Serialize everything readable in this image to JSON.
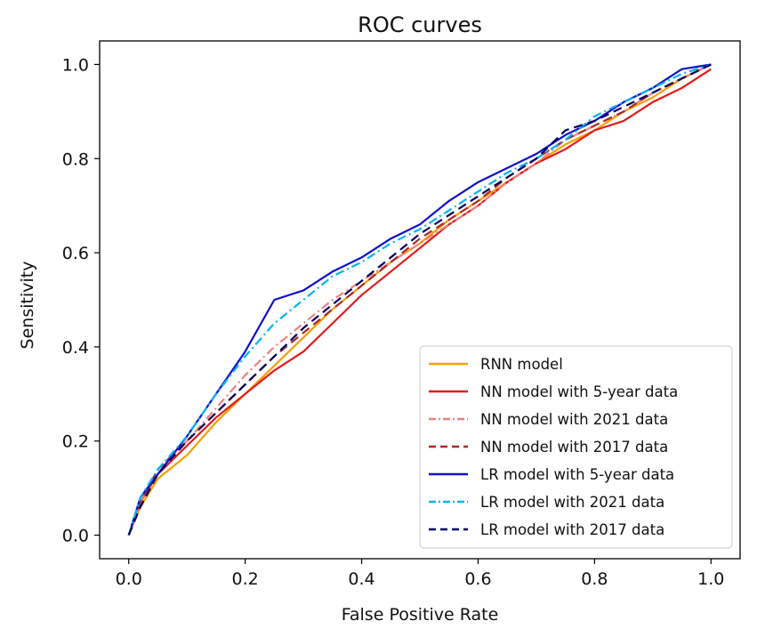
{
  "chart_data": {
    "type": "line",
    "title": "ROC curves",
    "xlabel": "False Positive Rate",
    "ylabel": "Sensitivity",
    "xlim": [
      -0.05,
      1.05
    ],
    "ylim": [
      -0.05,
      1.05
    ],
    "xticks": [
      0.0,
      0.2,
      0.4,
      0.6,
      0.8,
      1.0
    ],
    "yticks": [
      0.0,
      0.2,
      0.4,
      0.6,
      0.8,
      1.0
    ],
    "xtick_labels": [
      "0.0",
      "0.2",
      "0.4",
      "0.6",
      "0.8",
      "1.0"
    ],
    "ytick_labels": [
      "0.0",
      "0.2",
      "0.4",
      "0.6",
      "0.8",
      "1.0"
    ],
    "grid": false,
    "legend_position": "bottom-right",
    "series": [
      {
        "name": "RNN model",
        "color": "#f5a000",
        "style": "solid",
        "x": [
          0,
          0.02,
          0.05,
          0.1,
          0.15,
          0.2,
          0.25,
          0.3,
          0.35,
          0.4,
          0.45,
          0.5,
          0.55,
          0.6,
          0.65,
          0.7,
          0.75,
          0.8,
          0.85,
          0.9,
          0.95,
          1.0
        ],
        "y": [
          0,
          0.06,
          0.12,
          0.17,
          0.24,
          0.3,
          0.36,
          0.42,
          0.48,
          0.53,
          0.58,
          0.62,
          0.67,
          0.71,
          0.75,
          0.79,
          0.83,
          0.86,
          0.9,
          0.93,
          0.97,
          1.0
        ]
      },
      {
        "name": "NN model with 5-year data",
        "color": "#e41a1c",
        "style": "solid",
        "x": [
          0,
          0.02,
          0.05,
          0.1,
          0.15,
          0.2,
          0.25,
          0.3,
          0.35,
          0.4,
          0.45,
          0.5,
          0.55,
          0.6,
          0.65,
          0.7,
          0.75,
          0.8,
          0.85,
          0.9,
          0.95,
          1.0
        ],
        "y": [
          0,
          0.07,
          0.13,
          0.19,
          0.25,
          0.3,
          0.35,
          0.39,
          0.45,
          0.51,
          0.56,
          0.61,
          0.66,
          0.7,
          0.75,
          0.79,
          0.82,
          0.86,
          0.88,
          0.92,
          0.95,
          0.99
        ]
      },
      {
        "name": "NN model with 2021 data",
        "color": "#f08080",
        "style": "dashdot",
        "x": [
          0,
          0.02,
          0.05,
          0.1,
          0.15,
          0.2,
          0.25,
          0.3,
          0.35,
          0.4,
          0.45,
          0.5,
          0.55,
          0.6,
          0.65,
          0.7,
          0.75,
          0.8,
          0.85,
          0.9,
          0.95,
          1.0
        ],
        "y": [
          0,
          0.07,
          0.14,
          0.2,
          0.27,
          0.34,
          0.4,
          0.45,
          0.5,
          0.54,
          0.58,
          0.62,
          0.66,
          0.7,
          0.75,
          0.79,
          0.84,
          0.87,
          0.9,
          0.94,
          0.97,
          1.0
        ]
      },
      {
        "name": "NN model with 2017 data",
        "color": "#a52a2a",
        "style": "dashed",
        "x": [
          0,
          0.02,
          0.05,
          0.1,
          0.15,
          0.2,
          0.25,
          0.3,
          0.35,
          0.4,
          0.45,
          0.5,
          0.55,
          0.6,
          0.65,
          0.7,
          0.75,
          0.8,
          0.85,
          0.9,
          0.95,
          1.0
        ],
        "y": [
          0,
          0.07,
          0.14,
          0.2,
          0.26,
          0.32,
          0.38,
          0.43,
          0.48,
          0.53,
          0.58,
          0.63,
          0.67,
          0.71,
          0.76,
          0.8,
          0.84,
          0.87,
          0.9,
          0.94,
          0.97,
          1.0
        ]
      },
      {
        "name": "LR model with 5-year data",
        "color": "#1010cc",
        "style": "solid",
        "x": [
          0,
          0.02,
          0.05,
          0.1,
          0.15,
          0.2,
          0.25,
          0.3,
          0.35,
          0.4,
          0.45,
          0.5,
          0.55,
          0.6,
          0.65,
          0.7,
          0.75,
          0.8,
          0.85,
          0.9,
          0.95,
          1.0
        ],
        "y": [
          0,
          0.08,
          0.13,
          0.21,
          0.3,
          0.39,
          0.5,
          0.52,
          0.56,
          0.59,
          0.63,
          0.66,
          0.71,
          0.75,
          0.78,
          0.81,
          0.85,
          0.88,
          0.92,
          0.95,
          0.99,
          1.0
        ]
      },
      {
        "name": "LR model with 2021 data",
        "color": "#00b4f0",
        "style": "dashdot",
        "x": [
          0,
          0.02,
          0.05,
          0.1,
          0.15,
          0.2,
          0.25,
          0.3,
          0.35,
          0.4,
          0.45,
          0.5,
          0.55,
          0.6,
          0.65,
          0.7,
          0.75,
          0.8,
          0.85,
          0.9,
          0.95,
          1.0
        ],
        "y": [
          0,
          0.08,
          0.14,
          0.21,
          0.3,
          0.38,
          0.45,
          0.5,
          0.55,
          0.58,
          0.62,
          0.65,
          0.69,
          0.73,
          0.77,
          0.8,
          0.84,
          0.89,
          0.92,
          0.95,
          0.98,
          1.0
        ]
      },
      {
        "name": "LR model with 2017 data",
        "color": "#000060",
        "style": "dashed",
        "x": [
          0,
          0.02,
          0.05,
          0.1,
          0.15,
          0.2,
          0.25,
          0.3,
          0.35,
          0.4,
          0.45,
          0.5,
          0.55,
          0.6,
          0.65,
          0.7,
          0.75,
          0.8,
          0.85,
          0.9,
          0.95,
          1.0
        ],
        "y": [
          0,
          0.06,
          0.13,
          0.2,
          0.26,
          0.32,
          0.38,
          0.44,
          0.49,
          0.54,
          0.59,
          0.64,
          0.68,
          0.72,
          0.76,
          0.8,
          0.86,
          0.88,
          0.91,
          0.94,
          0.97,
          1.0
        ]
      }
    ]
  }
}
